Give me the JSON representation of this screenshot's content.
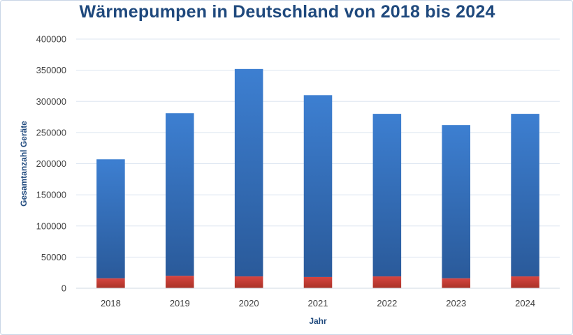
{
  "chart_data": {
    "type": "bar",
    "stacked": true,
    "title": "Wärmepumpen in Deutschland von 2018 bis 2024",
    "xlabel": "Jahr",
    "ylabel": "Gesamtanzahl Geräte",
    "categories": [
      "2018",
      "2019",
      "2020",
      "2021",
      "2022",
      "2023",
      "2024"
    ],
    "series": [
      {
        "values": [
          16000,
          20000,
          19000,
          18000,
          19000,
          16000,
          19000
        ],
        "color": "#c0392b"
      },
      {
        "values": [
          191000,
          261000,
          333000,
          292000,
          261000,
          246000,
          261000
        ],
        "color": "#3a78c6"
      }
    ],
    "totals": [
      207000,
      281000,
      352000,
      310000,
      280000,
      262000,
      280000
    ],
    "ylim": [
      0,
      400000
    ],
    "yticks": [
      0,
      50000,
      100000,
      150000,
      200000,
      250000,
      300000,
      350000,
      400000
    ],
    "grid": true,
    "legend": "none"
  }
}
